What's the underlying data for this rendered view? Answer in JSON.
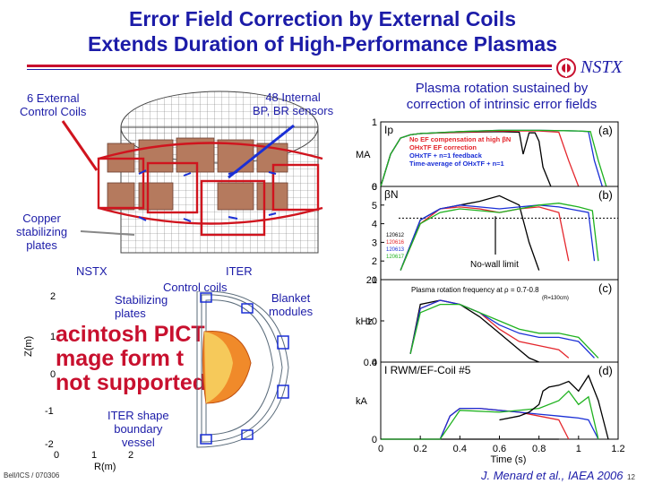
{
  "slide": {
    "title_line1": "Error Field Correction by External Coils",
    "title_line2": "Extends Duration of High-Performance Plasmas",
    "logo_text": "NSTX",
    "right_heading_line1": "Plasma rotation sustained by",
    "right_heading_line2": "correction of intrinsic error fields",
    "footer_left": "Bell/ICS / 070306",
    "citation": "J. Menard et al., IAEA 2006",
    "page_number": "12"
  },
  "left_figure": {
    "label_external_coils_l1": "6 External",
    "label_external_coils_l2": "Control Coils",
    "label_internal_sensors": "48 Internal",
    "label_internal_sensors_sub": "BP, BR sensors",
    "label_copper_l1": "Copper",
    "label_copper_l2": "stabilizing",
    "label_copper_l3": "plates"
  },
  "cross_section": {
    "label_nstx": "NSTX",
    "label_iter": "ITER",
    "label_control_coils": "Control coils",
    "label_stabilizing_l1": "Stabilizing",
    "label_stabilizing_l2": "plates",
    "label_blanket_l1": "Blanket",
    "label_blanket_l2": "modules",
    "label_iter_shape_l1": "ITER shape",
    "label_iter_shape_l2": "boundary",
    "label_iter_shape_l3": "vessel",
    "ylabel": "Z(m)",
    "xlabel": "R(m)",
    "yticks": [
      "2",
      "1",
      "0",
      "-1",
      "-2"
    ],
    "xticks": [
      "0",
      "1",
      "2"
    ],
    "overlay_l1": "acintosh PICT",
    "overlay_l2": "mage form  t",
    "overlay_l3": "not supported"
  },
  "chart_data": {
    "type": "line",
    "xlabel": "Time (s)",
    "xlim": [
      0,
      1.2
    ],
    "xticks": [
      "0",
      "0.2",
      "0.4",
      "0.6",
      "0.8",
      "1",
      "1.2"
    ],
    "shots": [
      "120612",
      "120616",
      "120613",
      "120617"
    ],
    "colors": {
      "black": "#000000",
      "red": "#e4262c",
      "blue": "#1a2fd6",
      "green": "#1fb21f"
    },
    "panels": [
      {
        "tag": "(a)",
        "name": "Ip",
        "ylabel": "Ip",
        "unit": "MA",
        "ylim": [
          0,
          1
        ],
        "yticks": [
          "1",
          "0"
        ],
        "legend": [
          "No EF compensation at high βN",
          "OHxTF EF correction",
          "OHxTF + n=1 feedback",
          "Time-average of OHxTF + n=1"
        ],
        "series": [
          {
            "color": "black",
            "x": [
              0.0,
              0.05,
              0.1,
              0.15,
              0.2,
              0.3,
              0.45,
              0.6,
              0.7,
              0.72,
              0.75,
              0.78,
              0.8,
              0.82,
              0.86
            ],
            "y": [
              0.0,
              0.5,
              0.75,
              0.8,
              0.82,
              0.83,
              0.84,
              0.85,
              0.84,
              0.5,
              0.83,
              0.83,
              0.7,
              0.3,
              0.0
            ]
          },
          {
            "color": "red",
            "x": [
              0.0,
              0.05,
              0.1,
              0.15,
              0.2,
              0.4,
              0.6,
              0.8,
              0.9,
              0.95,
              1.0
            ],
            "y": [
              0.0,
              0.5,
              0.75,
              0.8,
              0.82,
              0.84,
              0.86,
              0.86,
              0.84,
              0.4,
              0.0
            ]
          },
          {
            "color": "blue",
            "x": [
              0.0,
              0.05,
              0.1,
              0.15,
              0.2,
              0.4,
              0.6,
              0.8,
              1.0,
              1.05,
              1.08,
              1.12
            ],
            "y": [
              0.0,
              0.5,
              0.75,
              0.8,
              0.82,
              0.85,
              0.87,
              0.87,
              0.86,
              0.85,
              0.4,
              0.0
            ]
          },
          {
            "color": "green",
            "x": [
              0.0,
              0.05,
              0.1,
              0.15,
              0.2,
              0.4,
              0.6,
              0.8,
              1.0,
              1.06,
              1.1,
              1.14
            ],
            "y": [
              0.0,
              0.5,
              0.75,
              0.8,
              0.82,
              0.85,
              0.87,
              0.87,
              0.86,
              0.85,
              0.4,
              0.0
            ]
          }
        ]
      },
      {
        "tag": "(b)",
        "name": "betaN",
        "ylabel": "βN",
        "unit": "",
        "ylim": [
          1,
          6
        ],
        "yticks": [
          "6",
          "5",
          "4",
          "3",
          "2",
          "1"
        ],
        "annotation": "No-wall limit",
        "series": [
          {
            "color": "black",
            "x": [
              0.1,
              0.2,
              0.3,
              0.4,
              0.5,
              0.6,
              0.7,
              0.75,
              0.8
            ],
            "y": [
              1.5,
              4.2,
              4.8,
              5.0,
              5.2,
              5.5,
              5.0,
              3.0,
              1.5
            ]
          },
          {
            "color": "red",
            "x": [
              0.1,
              0.2,
              0.3,
              0.4,
              0.5,
              0.6,
              0.7,
              0.8,
              0.9,
              0.95
            ],
            "y": [
              1.5,
              4.0,
              4.8,
              4.9,
              4.8,
              4.6,
              4.8,
              4.9,
              4.6,
              2.0
            ]
          },
          {
            "color": "blue",
            "x": [
              0.1,
              0.2,
              0.3,
              0.4,
              0.5,
              0.6,
              0.7,
              0.8,
              0.9,
              1.0,
              1.05,
              1.08
            ],
            "y": [
              1.5,
              4.2,
              4.8,
              5.0,
              4.9,
              4.8,
              4.9,
              5.0,
              4.9,
              4.7,
              4.6,
              2.0
            ]
          },
          {
            "color": "green",
            "x": [
              0.1,
              0.2,
              0.3,
              0.4,
              0.5,
              0.6,
              0.7,
              0.8,
              0.9,
              1.0,
              1.07,
              1.1
            ],
            "y": [
              1.5,
              4.0,
              4.6,
              4.8,
              4.7,
              4.6,
              4.8,
              5.0,
              5.1,
              4.9,
              4.7,
              2.0
            ]
          }
        ]
      },
      {
        "tag": "(c)",
        "name": "rotation",
        "ylabel": "",
        "unit": "kHz",
        "title": "Plasma rotation frequency at ρ = 0.7-0.8",
        "note": "(R=130cm)",
        "ylim": [
          0,
          20
        ],
        "yticks": [
          "20",
          "10",
          "0"
        ],
        "series": [
          {
            "color": "black",
            "x": [
              0.15,
              0.2,
              0.3,
              0.4,
              0.5,
              0.6,
              0.7,
              0.75,
              0.8
            ],
            "y": [
              2,
              14,
              15,
              14,
              11,
              7,
              3,
              1,
              0
            ]
          },
          {
            "color": "red",
            "x": [
              0.15,
              0.2,
              0.3,
              0.4,
              0.5,
              0.6,
              0.7,
              0.8,
              0.9,
              0.95
            ],
            "y": [
              2,
              13,
              15,
              14,
              12,
              8,
              5,
              4,
              3,
              1
            ]
          },
          {
            "color": "blue",
            "x": [
              0.15,
              0.2,
              0.3,
              0.4,
              0.5,
              0.6,
              0.7,
              0.8,
              0.9,
              1.0,
              1.08
            ],
            "y": [
              2,
              13,
              15,
              14,
              12,
              9,
              7,
              6,
              6,
              5,
              1
            ]
          },
          {
            "color": "green",
            "x": [
              0.15,
              0.2,
              0.3,
              0.4,
              0.5,
              0.6,
              0.7,
              0.8,
              0.9,
              1.0,
              1.1
            ],
            "y": [
              2,
              12,
              14,
              14,
              12,
              10,
              8,
              7,
              7,
              6,
              1
            ]
          }
        ]
      },
      {
        "tag": "(d)",
        "name": "coil_current",
        "ylabel": "I RWM/EF-Coil #5",
        "unit": "kA",
        "ylim": [
          0,
          0.4
        ],
        "yticks": [
          "0.4",
          "0"
        ],
        "series": [
          {
            "color": "black",
            "x": [
              0.0,
              0.6,
              0.7,
              0.8,
              0.85,
              0.9
            ],
            "y": [
              0.0,
              0.0,
              0.0,
              0.0,
              0.0,
              0.0
            ]
          },
          {
            "color": "red",
            "x": [
              0.0,
              0.3,
              0.35,
              0.4,
              0.5,
              0.6,
              0.7,
              0.8,
              0.9,
              0.95
            ],
            "y": [
              0.0,
              0.0,
              0.12,
              0.16,
              0.16,
              0.15,
              0.14,
              0.12,
              0.1,
              0.0
            ]
          },
          {
            "color": "blue",
            "x": [
              0.0,
              0.3,
              0.35,
              0.4,
              0.5,
              0.6,
              0.7,
              0.8,
              0.9,
              1.0,
              1.05,
              1.1
            ],
            "y": [
              0.0,
              0.0,
              0.12,
              0.16,
              0.16,
              0.15,
              0.14,
              0.13,
              0.12,
              0.11,
              0.1,
              0.0
            ]
          },
          {
            "color": "green",
            "x": [
              0.0,
              0.3,
              0.4,
              0.6,
              0.8,
              0.9,
              0.95,
              1.0,
              1.05,
              1.1
            ],
            "y": [
              0.0,
              0.0,
              0.15,
              0.14,
              0.16,
              0.2,
              0.25,
              0.18,
              0.22,
              0.0
            ]
          },
          {
            "color": "black",
            "x": [
              0.6,
              0.7,
              0.75,
              0.8,
              0.82,
              0.85,
              0.9,
              0.95,
              1.0,
              1.05,
              1.1,
              1.15
            ],
            "y": [
              0.1,
              0.12,
              0.14,
              0.18,
              0.25,
              0.27,
              0.28,
              0.3,
              0.25,
              0.33,
              0.2,
              0.0
            ]
          }
        ]
      }
    ]
  }
}
